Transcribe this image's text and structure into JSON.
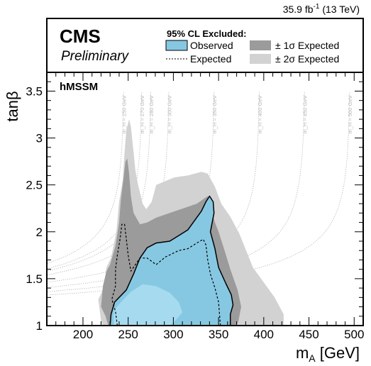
{
  "header": {
    "luminosity": "35.9 fb",
    "luminosity_exp": "-1",
    "energy": "(13 TeV)"
  },
  "logo": {
    "experiment": "CMS",
    "status": "Preliminary"
  },
  "legend": {
    "title": "95% CL Excluded:",
    "observed": "Observed",
    "expected": "Expected",
    "one_sigma": "± 1σ Expected",
    "two_sigma": "± 2σ Expected"
  },
  "model_label": "hMSSM",
  "colors": {
    "observed_fill": "#86c8e2",
    "observed_bright": "#a6dbef",
    "one_sigma": "#9b9b9b",
    "two_sigma": "#d2d2d2",
    "contour_line": "#aaaaaa"
  },
  "chart_data": {
    "type": "area",
    "xlabel": "m_A [GeV]",
    "ylabel": "tanβ",
    "xlim": [
      160,
      510
    ],
    "ylim": [
      1,
      3.7
    ],
    "x_ticks": [
      200,
      250,
      300,
      350,
      400,
      450,
      500
    ],
    "y_ticks": [
      1,
      1.5,
      2,
      2.5,
      3,
      3.5
    ],
    "mh_contours": [
      {
        "label": "m_H = 250 GeV",
        "mA": 246
      },
      {
        "label": "m_H = 270 GeV",
        "mA": 266
      },
      {
        "label": "m_H = 280 GeV",
        "mA": 276
      },
      {
        "label": "m_H = 300 GeV",
        "mA": 296
      },
      {
        "label": "m_H = 350 GeV",
        "mA": 346
      },
      {
        "label": "m_H = 400 GeV",
        "mA": 396
      },
      {
        "label": "m_H = 450 GeV",
        "mA": 446
      },
      {
        "label": "m_H = 500 GeV",
        "mA": 496
      }
    ],
    "two_sigma_band": [
      [
        222,
        1.0
      ],
      [
        220,
        1.05
      ],
      [
        217,
        1.28
      ],
      [
        223,
        1.4
      ],
      [
        226,
        1.62
      ],
      [
        231,
        1.72
      ],
      [
        237,
        2.0
      ],
      [
        240,
        2.32
      ],
      [
        244,
        2.55
      ],
      [
        246,
        2.85
      ],
      [
        248,
        3.08
      ],
      [
        251,
        3.2
      ],
      [
        253,
        3.12
      ],
      [
        256,
        2.85
      ],
      [
        258,
        2.65
      ],
      [
        261,
        2.5
      ],
      [
        266,
        2.3
      ],
      [
        270,
        2.24
      ],
      [
        276,
        2.32
      ],
      [
        281,
        2.5
      ],
      [
        291,
        2.54
      ],
      [
        301,
        2.58
      ],
      [
        316,
        2.6
      ],
      [
        331,
        2.64
      ],
      [
        338,
        2.62
      ],
      [
        346,
        2.48
      ],
      [
        353,
        2.3
      ],
      [
        363,
        2.16
      ],
      [
        373,
        1.98
      ],
      [
        388,
        1.62
      ],
      [
        403,
        1.42
      ],
      [
        412,
        1.3
      ],
      [
        422,
        1.12
      ],
      [
        422,
        1.0
      ]
    ],
    "one_sigma_band": [
      [
        228,
        1.0
      ],
      [
        225,
        1.1
      ],
      [
        220,
        1.2
      ],
      [
        222,
        1.42
      ],
      [
        226,
        1.58
      ],
      [
        230,
        1.65
      ],
      [
        236,
        1.85
      ],
      [
        240,
        2.1
      ],
      [
        242,
        2.35
      ],
      [
        245,
        2.58
      ],
      [
        247,
        2.75
      ],
      [
        249,
        2.78
      ],
      [
        251,
        2.62
      ],
      [
        253,
        2.38
      ],
      [
        256,
        2.2
      ],
      [
        263,
        2.08
      ],
      [
        271,
        2.1
      ],
      [
        281,
        2.15
      ],
      [
        296,
        2.2
      ],
      [
        311,
        2.25
      ],
      [
        326,
        2.3
      ],
      [
        338,
        2.38
      ],
      [
        346,
        2.1
      ],
      [
        350,
        2.0
      ],
      [
        356,
        1.82
      ],
      [
        363,
        1.6
      ],
      [
        371,
        1.38
      ],
      [
        375,
        1.2
      ],
      [
        372,
        1.05
      ],
      [
        370,
        1.0
      ]
    ],
    "observed_region": [
      [
        230,
        1.0
      ],
      [
        231,
        1.12
      ],
      [
        235,
        1.25
      ],
      [
        248,
        1.38
      ],
      [
        256,
        1.55
      ],
      [
        263,
        1.72
      ],
      [
        271,
        1.83
      ],
      [
        281,
        1.88
      ],
      [
        296,
        1.9
      ],
      [
        316,
        2.02
      ],
      [
        331,
        2.22
      ],
      [
        336,
        2.32
      ],
      [
        340,
        2.38
      ],
      [
        344,
        2.32
      ],
      [
        345,
        2.2
      ],
      [
        341,
        2.0
      ],
      [
        346,
        1.82
      ],
      [
        350,
        1.62
      ],
      [
        358,
        1.45
      ],
      [
        364,
        1.33
      ],
      [
        366,
        1.22
      ],
      [
        363,
        1.12
      ],
      [
        363,
        1.0
      ]
    ],
    "observed_bright_region": [
      [
        234,
        1.0
      ],
      [
        234,
        1.16
      ],
      [
        243,
        1.26
      ],
      [
        253,
        1.36
      ],
      [
        266,
        1.44
      ],
      [
        281,
        1.42
      ],
      [
        296,
        1.35
      ],
      [
        306,
        1.25
      ],
      [
        310,
        1.14
      ],
      [
        301,
        1.04
      ],
      [
        296,
        1.0
      ]
    ],
    "expected_line": [
      [
        238,
        1.0
      ],
      [
        236,
        1.15
      ],
      [
        232,
        1.28
      ],
      [
        236,
        1.42
      ],
      [
        236,
        1.6
      ],
      [
        238,
        1.75
      ],
      [
        241,
        1.92
      ],
      [
        243,
        2.08
      ],
      [
        246,
        2.08
      ],
      [
        248,
        1.92
      ],
      [
        250,
        1.75
      ],
      [
        253,
        1.58
      ],
      [
        258,
        1.65
      ],
      [
        263,
        1.72
      ],
      [
        271,
        1.72
      ],
      [
        281,
        1.65
      ],
      [
        291,
        1.73
      ],
      [
        306,
        1.8
      ],
      [
        316,
        1.82
      ],
      [
        326,
        1.88
      ],
      [
        333,
        1.92
      ],
      [
        336,
        1.86
      ],
      [
        338,
        1.7
      ],
      [
        341,
        1.55
      ],
      [
        346,
        1.4
      ],
      [
        350,
        1.25
      ],
      [
        352,
        1.0
      ]
    ]
  }
}
